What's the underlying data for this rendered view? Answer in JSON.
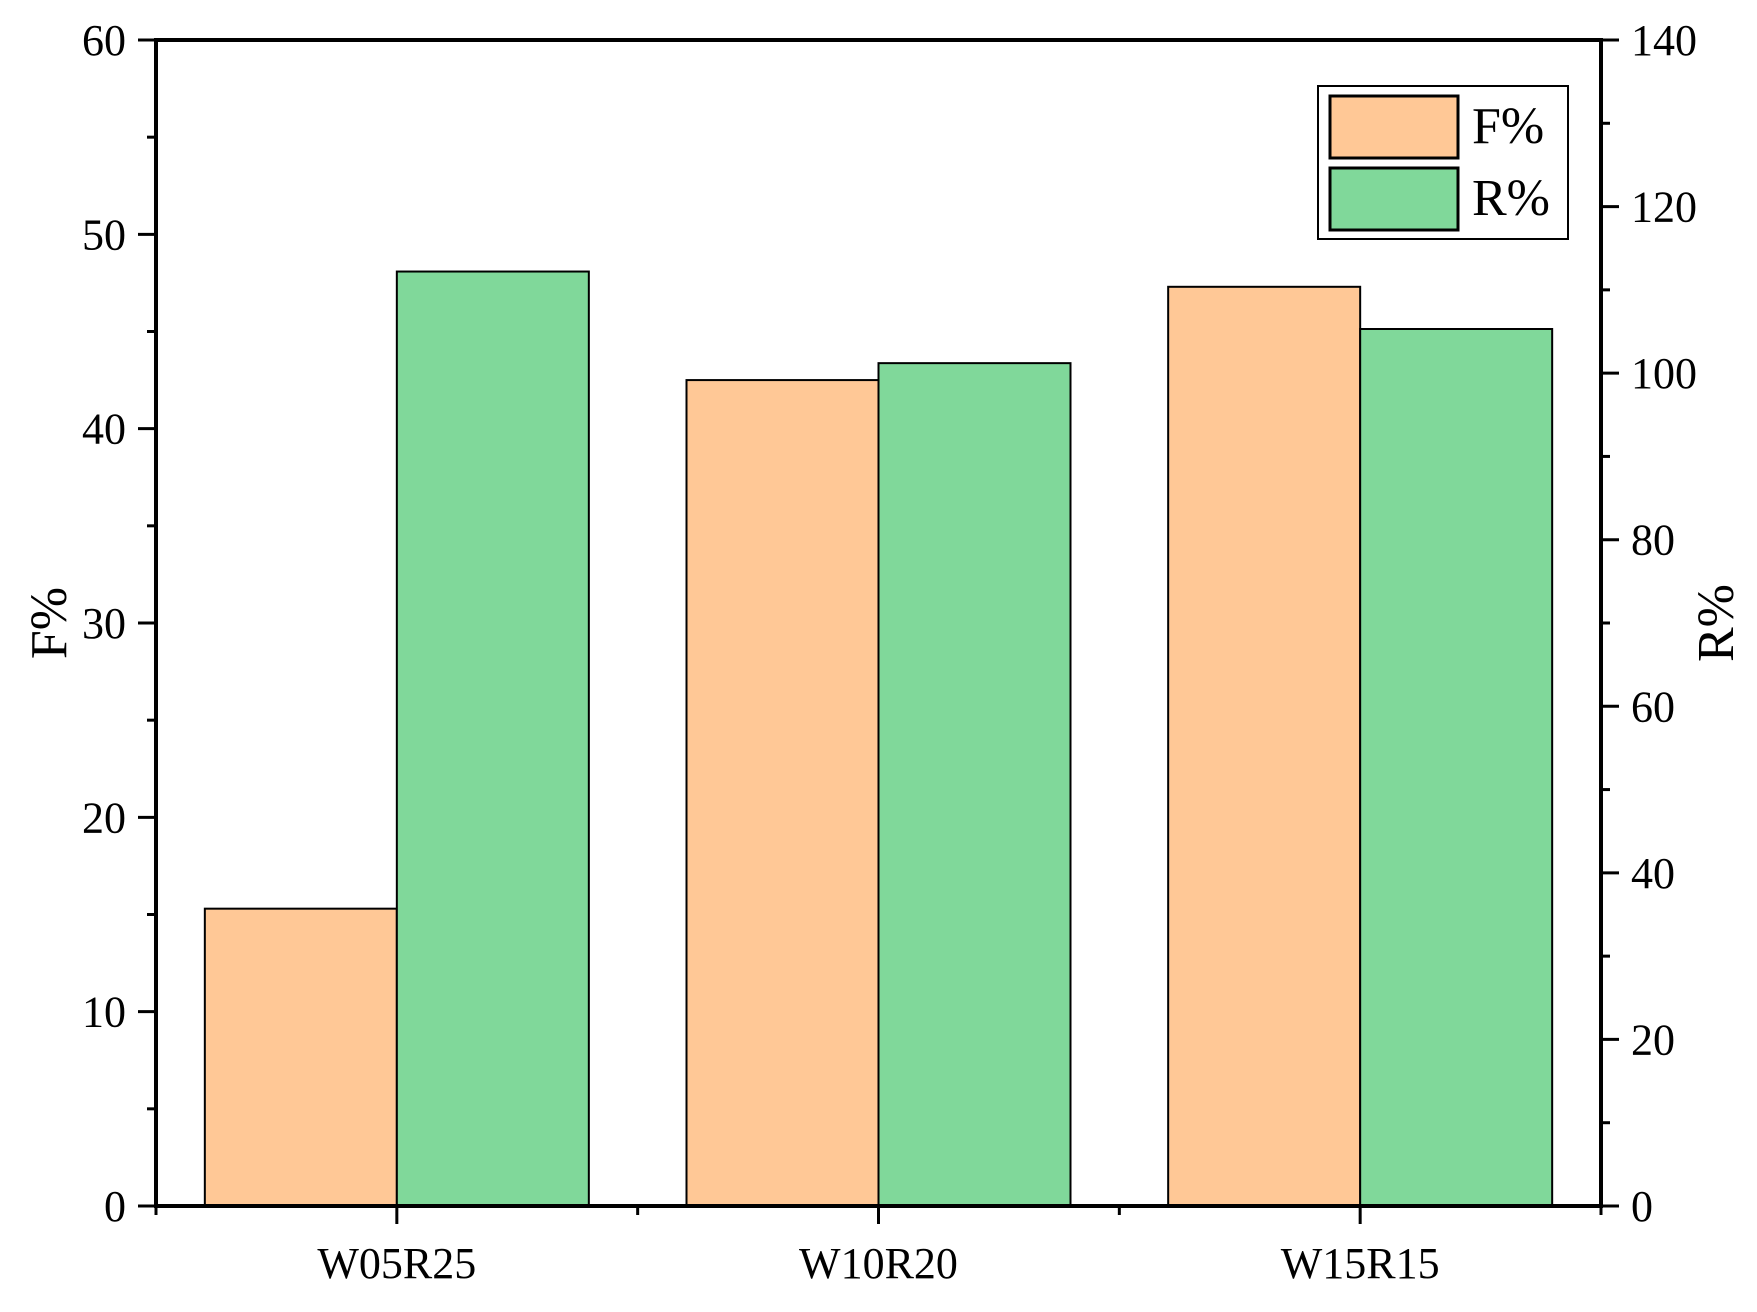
{
  "chart_data": {
    "type": "bar",
    "categories": [
      "W05R25",
      "W10R20",
      "W15R15"
    ],
    "series": [
      {
        "name": "F%",
        "axis": "left",
        "values": [
          15.3,
          42.5,
          47.3
        ],
        "color": "#FFC896"
      },
      {
        "name": "R%",
        "axis": "right",
        "values": [
          112.2,
          101.2,
          105.3
        ],
        "color": "#80D89A"
      }
    ],
    "y_left": {
      "label": "F%",
      "ylim": [
        0,
        60
      ],
      "ticks": [
        "0",
        "10",
        "20",
        "30",
        "40",
        "50",
        "60"
      ]
    },
    "y_right": {
      "label": "R%",
      "ylim": [
        0,
        140
      ],
      "ticks": [
        "0",
        "20",
        "40",
        "60",
        "80",
        "100",
        "120",
        "140"
      ]
    },
    "grid": false,
    "legend_position": "top-right"
  }
}
